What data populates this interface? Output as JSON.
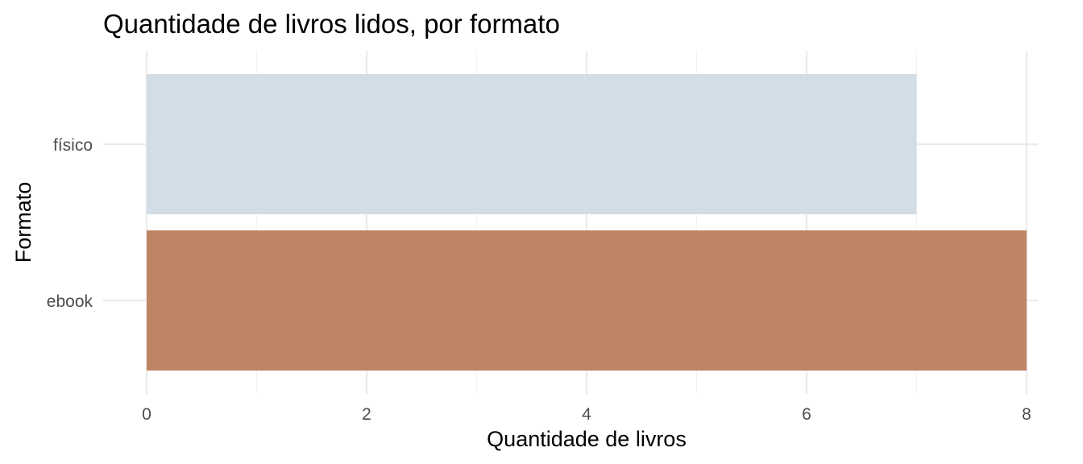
{
  "chart_data": {
    "type": "bar",
    "orientation": "horizontal",
    "title": "Quantidade de livros lidos, por formato",
    "xlabel": "Quantidade de livros",
    "ylabel": "Formato",
    "categories": [
      "físico",
      "ebook"
    ],
    "values": [
      7,
      8
    ],
    "colors": [
      "#d2dde6",
      "#be8565"
    ],
    "xlim": [
      0,
      8
    ],
    "xticks": [
      0,
      2,
      4,
      6,
      8
    ],
    "grid": true,
    "legend": "none"
  }
}
